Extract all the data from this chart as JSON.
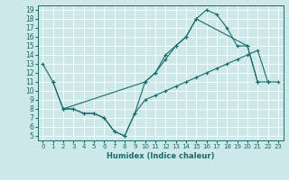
{
  "xlabel": "Humidex (Indice chaleur)",
  "xlim": [
    -0.5,
    23.5
  ],
  "ylim": [
    4.5,
    19.5
  ],
  "xticks": [
    0,
    1,
    2,
    3,
    4,
    5,
    6,
    7,
    8,
    9,
    10,
    11,
    12,
    13,
    14,
    15,
    16,
    17,
    18,
    19,
    20,
    21,
    22,
    23
  ],
  "yticks": [
    5,
    6,
    7,
    8,
    9,
    10,
    11,
    12,
    13,
    14,
    15,
    16,
    17,
    18,
    19
  ],
  "bg_color": "#cde8e8",
  "line_color": "#1a6b6b",
  "grid_color": "#b8d8d8",
  "curves": [
    {
      "x": [
        0,
        1,
        2,
        10,
        11,
        12,
        13,
        14,
        15,
        16,
        17,
        18,
        19,
        20,
        21,
        22
      ],
      "y": [
        13,
        11,
        8,
        11,
        12,
        14,
        15,
        16,
        18,
        19,
        18.5,
        17,
        15,
        15,
        11,
        11
      ]
    },
    {
      "x": [
        1,
        2,
        3,
        4,
        5,
        6,
        7,
        8,
        9,
        10,
        11,
        12,
        13,
        14,
        15,
        16,
        17,
        18,
        19,
        20,
        21,
        22,
        23
      ],
      "y": [
        11,
        8,
        8,
        7.5,
        7.5,
        7,
        5.5,
        5,
        7.5,
        9,
        9.5,
        10,
        10.5,
        11,
        11.5,
        12,
        12.5,
        13,
        13.5,
        14,
        14.5,
        11,
        11
      ]
    },
    {
      "x": [
        2,
        3,
        4,
        5,
        6,
        7,
        8,
        9,
        10,
        11,
        12,
        13,
        14,
        15,
        20,
        21
      ],
      "y": [
        8,
        8,
        7.5,
        7.5,
        7,
        5.5,
        5,
        7.5,
        11,
        12,
        13.5,
        15,
        16,
        18,
        15,
        11
      ]
    }
  ]
}
